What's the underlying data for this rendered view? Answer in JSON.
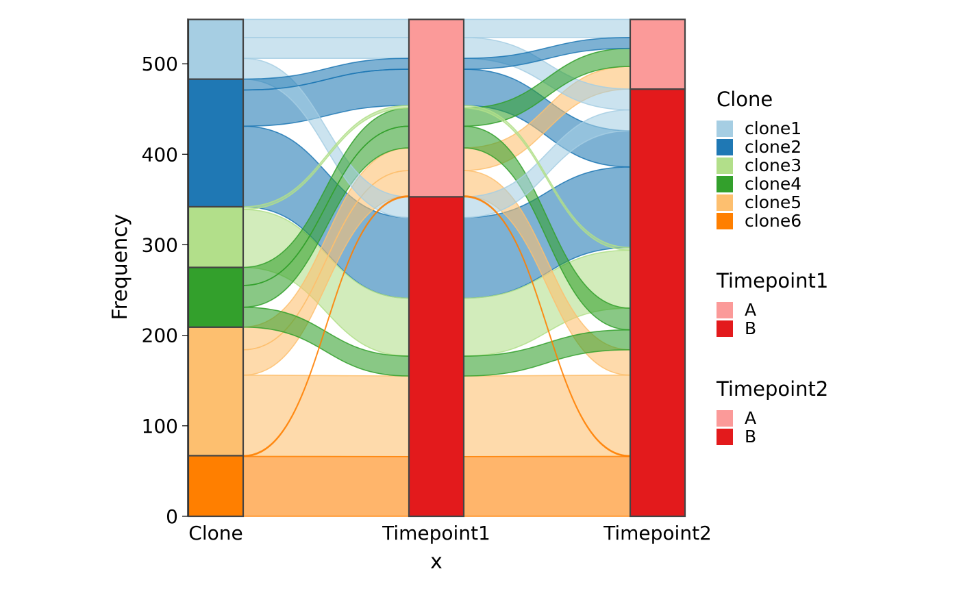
{
  "chart_data": {
    "type": "alluvial",
    "xlabel": "x",
    "ylabel": "Frequency",
    "ylim": [
      0,
      550
    ],
    "yticks": [
      0,
      100,
      200,
      300,
      400,
      500
    ],
    "axes": [
      "Clone",
      "Timepoint1",
      "Timepoint2"
    ],
    "clones": [
      {
        "name": "clone1",
        "color": "#A6CEE3"
      },
      {
        "name": "clone2",
        "color": "#1F78B4"
      },
      {
        "name": "clone3",
        "color": "#B2DF8A"
      },
      {
        "name": "clone4",
        "color": "#33A02C"
      },
      {
        "name": "clone5",
        "color": "#FDBF6F"
      },
      {
        "name": "clone6",
        "color": "#FF7F00"
      }
    ],
    "levels": [
      {
        "name": "A",
        "color": "#FB9A99"
      },
      {
        "name": "B",
        "color": "#E31A1C"
      }
    ],
    "stack_order": {
      "Clone": [
        "clone6",
        "clone5",
        "clone4",
        "clone3",
        "clone2",
        "clone1"
      ],
      "Timepoint1": [
        "B",
        "A"
      ],
      "Timepoint2": [
        "B",
        "A"
      ]
    },
    "flows": [
      {
        "clone": "clone1",
        "Timepoint1": "A",
        "Timepoint2": "A",
        "value": 20
      },
      {
        "clone": "clone1",
        "Timepoint1": "A",
        "Timepoint2": "B",
        "value": 23
      },
      {
        "clone": "clone1",
        "Timepoint1": "B",
        "Timepoint2": "B",
        "value": 23
      },
      {
        "clone": "clone2",
        "Timepoint1": "A",
        "Timepoint2": "A",
        "value": 12
      },
      {
        "clone": "clone2",
        "Timepoint1": "A",
        "Timepoint2": "B",
        "value": 40
      },
      {
        "clone": "clone2",
        "Timepoint1": "B",
        "Timepoint2": "B",
        "value": 89
      },
      {
        "clone": "clone3",
        "Timepoint1": "A",
        "Timepoint2": "B",
        "value": 3
      },
      {
        "clone": "clone3",
        "Timepoint1": "B",
        "Timepoint2": "B",
        "value": 64
      },
      {
        "clone": "clone4",
        "Timepoint1": "A",
        "Timepoint2": "A",
        "value": 20
      },
      {
        "clone": "clone4",
        "Timepoint1": "A",
        "Timepoint2": "B",
        "value": 24
      },
      {
        "clone": "clone4",
        "Timepoint1": "B",
        "Timepoint2": "B",
        "value": 22
      },
      {
        "clone": "clone5",
        "Timepoint1": "A",
        "Timepoint2": "A",
        "value": 25
      },
      {
        "clone": "clone5",
        "Timepoint1": "A",
        "Timepoint2": "B",
        "value": 28
      },
      {
        "clone": "clone5",
        "Timepoint1": "B",
        "Timepoint2": "B",
        "value": 89
      },
      {
        "clone": "clone6",
        "Timepoint1": "A",
        "Timepoint2": "B",
        "value": 1
      },
      {
        "clone": "clone6",
        "Timepoint1": "B",
        "Timepoint2": "B",
        "value": 66
      }
    ]
  },
  "legends": [
    {
      "title": "Clone",
      "items": [
        {
          "label": "clone1",
          "color": "#A6CEE3"
        },
        {
          "label": "clone2",
          "color": "#1F78B4"
        },
        {
          "label": "clone3",
          "color": "#B2DF8A"
        },
        {
          "label": "clone4",
          "color": "#33A02C"
        },
        {
          "label": "clone5",
          "color": "#FDBF6F"
        },
        {
          "label": "clone6",
          "color": "#FF7F00"
        }
      ]
    },
    {
      "title": "Timepoint1",
      "items": [
        {
          "label": "A",
          "color": "#FB9A99"
        },
        {
          "label": "B",
          "color": "#E31A1C"
        }
      ]
    },
    {
      "title": "Timepoint2",
      "items": [
        {
          "label": "A",
          "color": "#FB9A99"
        },
        {
          "label": "B",
          "color": "#E31A1C"
        }
      ]
    }
  ]
}
